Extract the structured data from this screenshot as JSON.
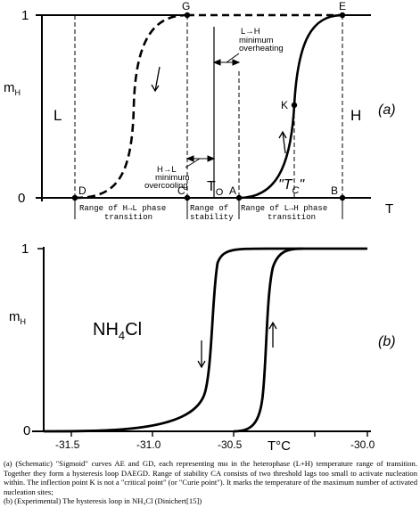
{
  "panel_a": {
    "y_top_label": "1",
    "y_bottom_label": "0",
    "y_axis_label": "m",
    "y_axis_sub": "H",
    "x_axis_label": "T",
    "panel_tag": "(a)",
    "points": {
      "G": "G",
      "E": "E",
      "K": "K",
      "D": "D",
      "C": "C",
      "A": "A",
      "B": "B"
    },
    "region_low": "L",
    "region_high": "H",
    "t0_main": "T",
    "t0_sub": "O",
    "tc_main": "\"T",
    "tc_sub": "C",
    "tc_close": "\"",
    "annot_lh": [
      "L→H",
      "minimum",
      "overheating"
    ],
    "annot_hl": [
      "H→L",
      "minimum",
      "overcooling"
    ],
    "range_hl": [
      "Range of H→L phase",
      "transition"
    ],
    "range_stab": [
      "Range of",
      "stability"
    ],
    "range_lh": [
      "Range of L→H phase",
      "transition"
    ]
  },
  "panel_b": {
    "y_top_label": "1",
    "y_bottom_label": "0",
    "y_axis_label": "m",
    "y_axis_sub": "H",
    "compound_main": "NH",
    "compound_sub": "4",
    "compound_tail": "Cl",
    "panel_tag": "(b)",
    "x_axis_title": "T°C",
    "x_ticks": [
      "-31.5",
      "-31.0",
      "-30.5",
      "-30.0"
    ]
  },
  "caption": [
    "(a) (Schematic) \"Sigmoid\" curves AE and GD, each representing mʜ in the heterophase (L+H) temperature range of transition. Together they form a hysteresis loop DAEGD. Range of stability CA consists of two threshold lags too small to activate nucleation within. The inflection point K is not a \"critical point\" (or \"Curie point\"). It marks the temperature of the maximum number of activated nucleation sites;",
    "(b) (Experimental) The hysteresis loop in NH₄Cl (Dinichert[15])"
  ]
}
